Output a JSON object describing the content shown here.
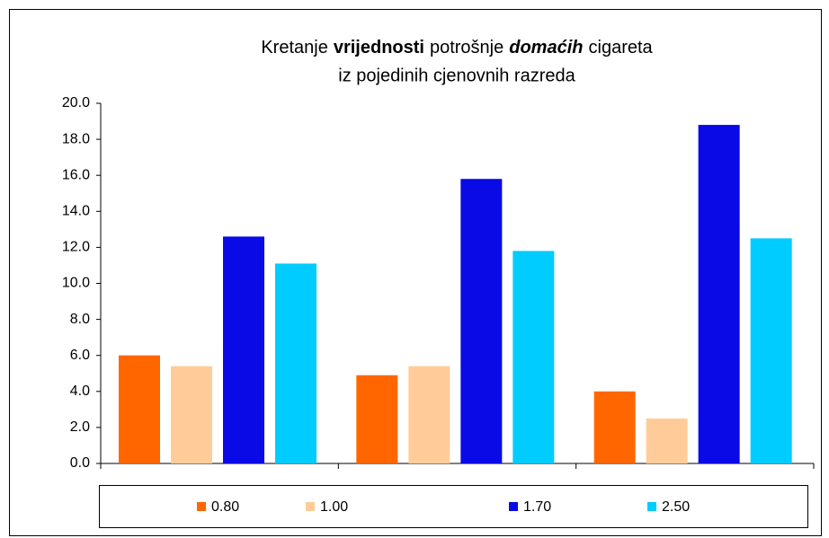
{
  "chart_data": {
    "type": "bar",
    "title": [
      "Kretanje",
      "vrijednosti",
      "potrošnje",
      "domaćih",
      "cigareta"
    ],
    "title_styles": [
      "normal",
      "bold",
      "normal",
      "bold-italic",
      "normal"
    ],
    "subtitle": "iz pojedinih cjenovnih razreda",
    "categories": [
      null,
      null,
      null
    ],
    "series": [
      {
        "name": "0.80",
        "color": "#ff6600",
        "values": [
          6.0,
          4.9,
          4.0
        ]
      },
      {
        "name": "1.00",
        "color": "#ffcc99",
        "values": [
          5.4,
          5.4,
          2.5
        ]
      },
      {
        "name": "1.70",
        "color": "#0a0ae6",
        "values": [
          12.6,
          15.8,
          18.8
        ]
      },
      {
        "name": "2.50",
        "color": "#00ccff",
        "values": [
          11.1,
          11.8,
          12.5
        ]
      }
    ],
    "ylim": [
      0,
      20
    ],
    "yticks": [
      {
        "value": 0,
        "label": "0.0"
      },
      {
        "value": 2,
        "label": "2.0"
      },
      {
        "value": 4,
        "label": "4.0"
      },
      {
        "value": 6,
        "label": "6.0"
      },
      {
        "value": 8,
        "label": "8.0"
      },
      {
        "value": 10,
        "label": "10.0"
      },
      {
        "value": 12,
        "label": "12.0"
      },
      {
        "value": 14,
        "label": "14.0"
      },
      {
        "value": 16,
        "label": "16.0"
      },
      {
        "value": 18,
        "label": "18.0"
      },
      {
        "value": 20,
        "label": "20.0"
      }
    ],
    "grid": false,
    "legend": "bottom"
  }
}
